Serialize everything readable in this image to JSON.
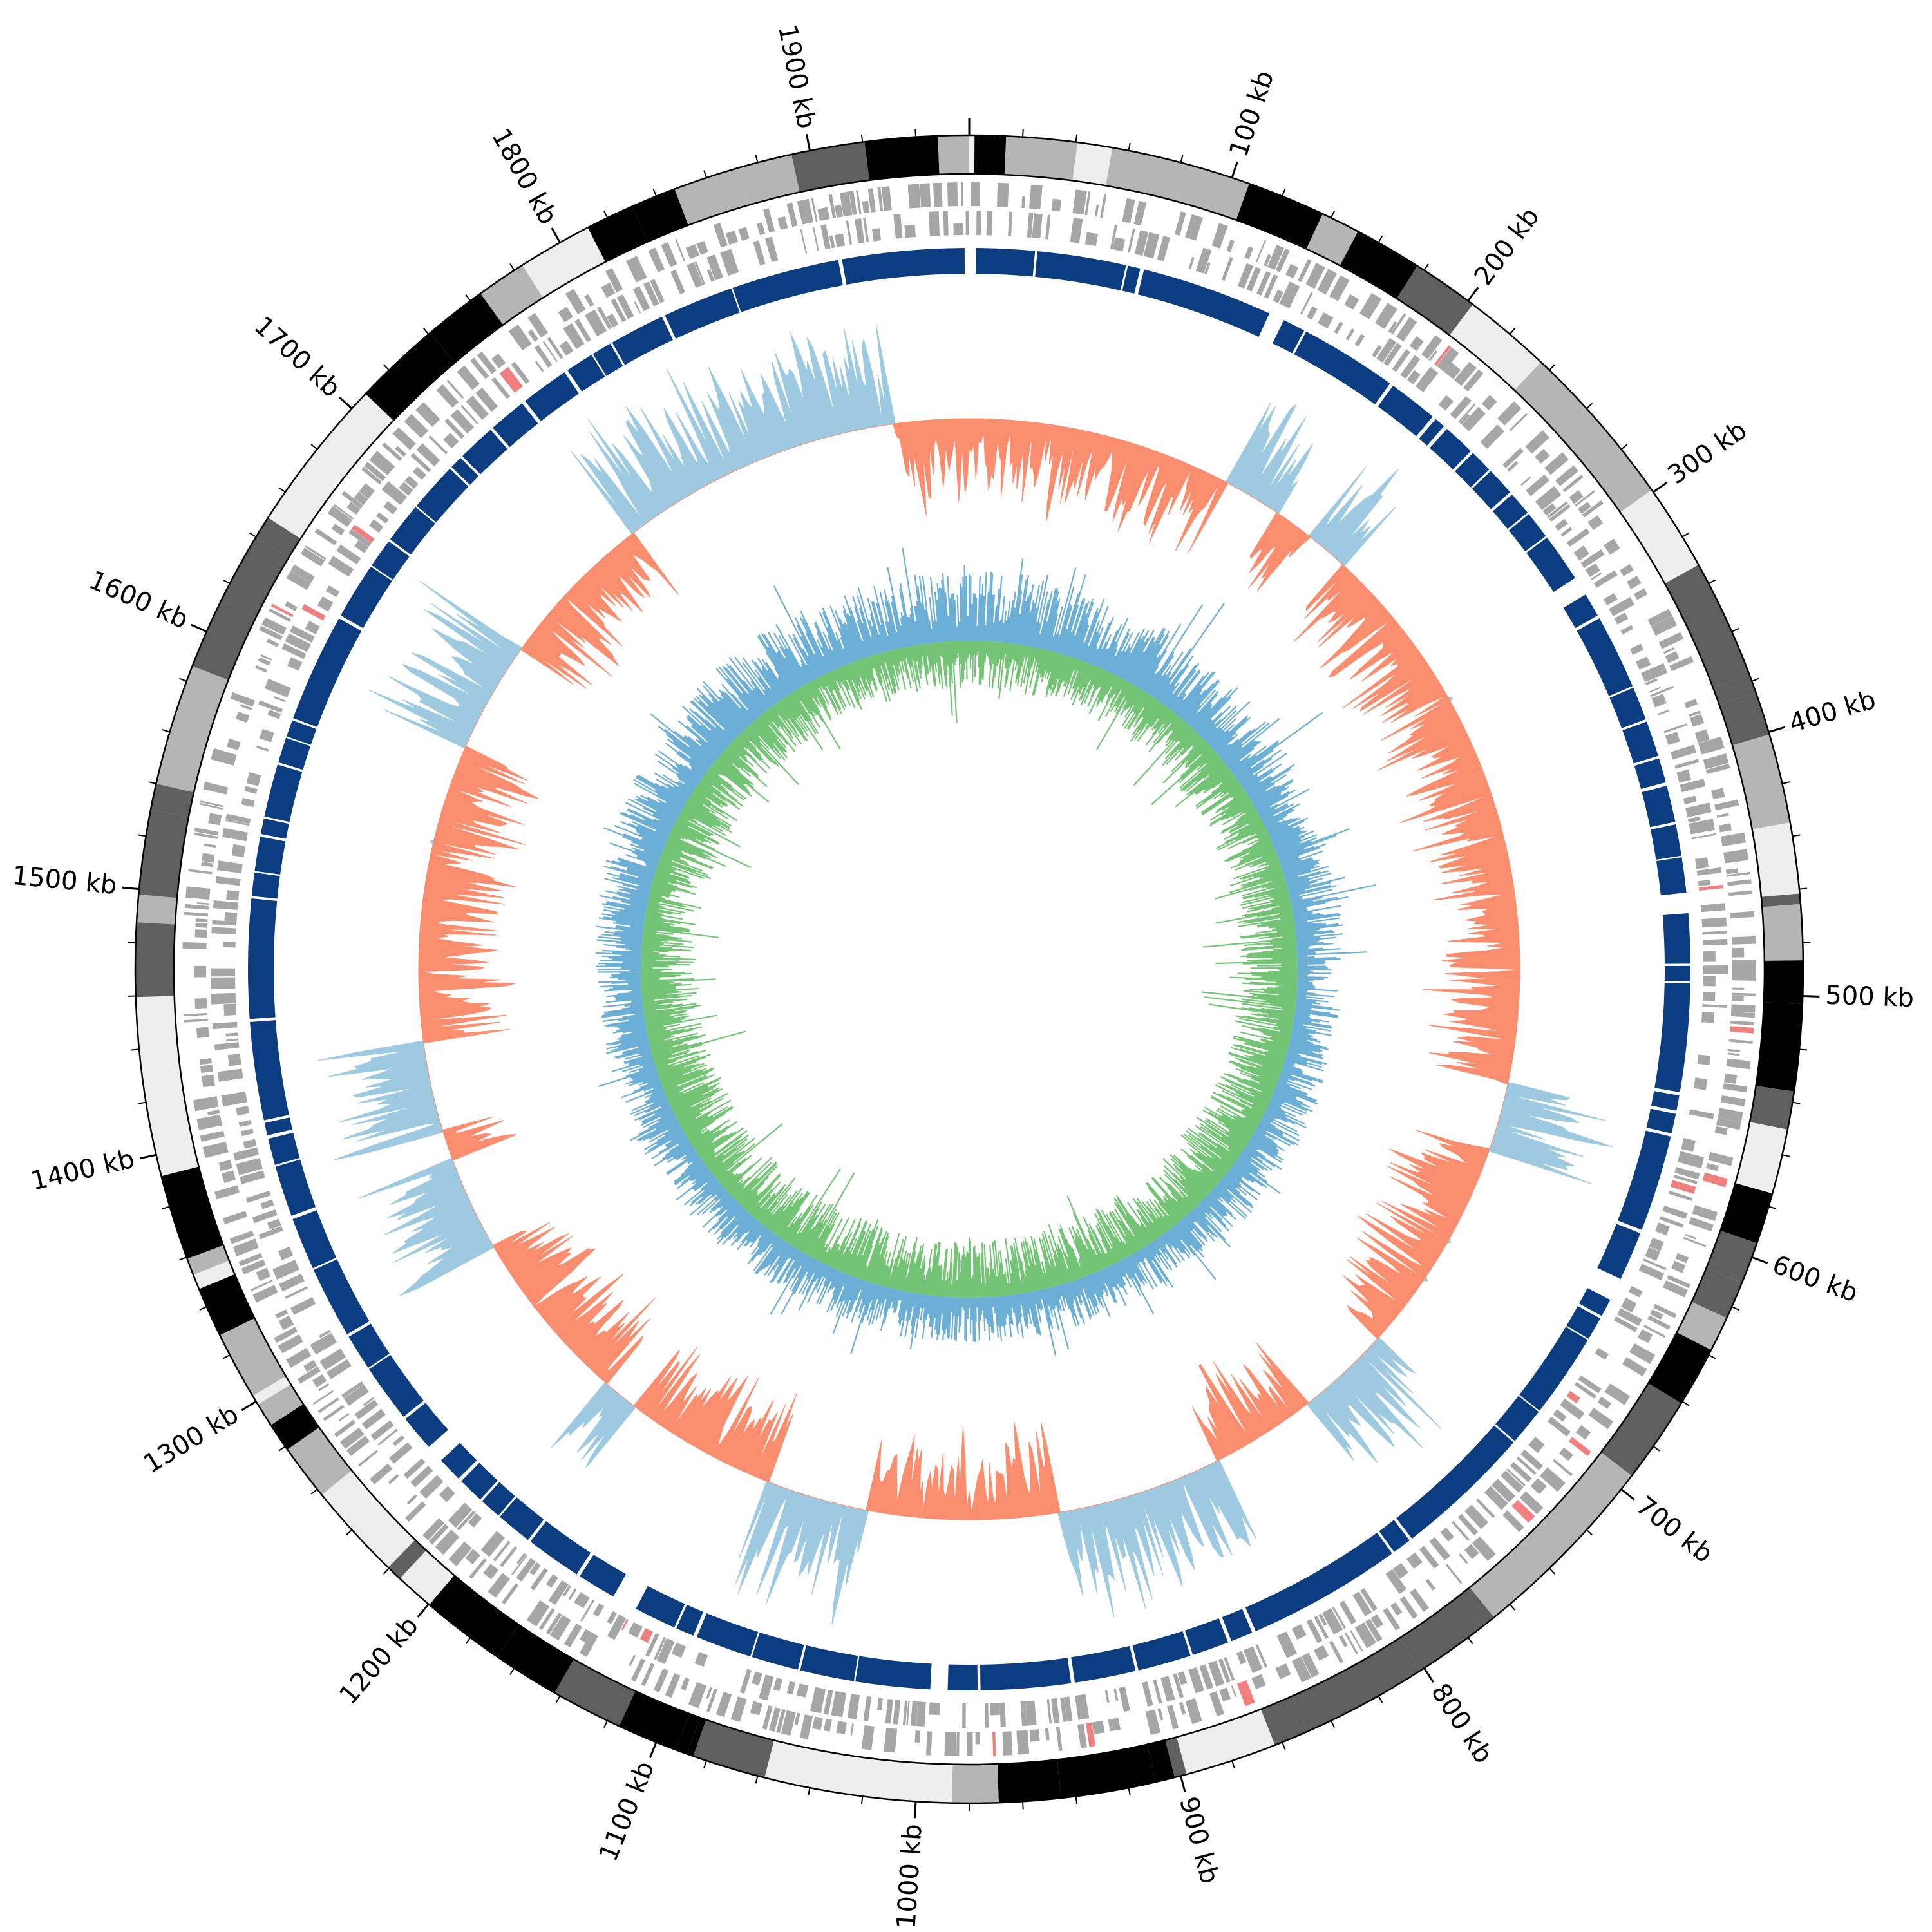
{
  "genome_total_kb": 1960,
  "label_interval_kb": 100,
  "minor_tick_interval_kb": 20,
  "tick_labels": [
    {
      "kb": 100,
      "text": "100 kb"
    },
    {
      "kb": 200,
      "text": "200 kb"
    },
    {
      "kb": 300,
      "text": "300 kb"
    },
    {
      "kb": 400,
      "text": "400 kb"
    },
    {
      "kb": 500,
      "text": "500 kb"
    },
    {
      "kb": 600,
      "text": "600 kb"
    },
    {
      "kb": 700,
      "text": "700 kb"
    },
    {
      "kb": 800,
      "text": "800 kb"
    },
    {
      "kb": 900,
      "text": "900 kb"
    },
    {
      "kb": 1000,
      "text": "1000 kb"
    },
    {
      "kb": 1100,
      "text": "1100 kb"
    },
    {
      "kb": 1200,
      "text": "1200 kb"
    },
    {
      "kb": 1300,
      "text": "1300 kb"
    },
    {
      "kb": 1400,
      "text": "1400 kb"
    },
    {
      "kb": 1500,
      "text": "1500 kb"
    },
    {
      "kb": 1600,
      "text": "1600 kb"
    },
    {
      "kb": 1700,
      "text": "1700 kb"
    },
    {
      "kb": 1800,
      "text": "1800 kb"
    },
    {
      "kb": 1900,
      "text": "1900 kb"
    }
  ],
  "colors": {
    "band_shades": [
      "#000000",
      "#5f5f5f",
      "#b5b5b5",
      "#eeeeee"
    ],
    "gene_gray": "#a6a6a6",
    "gene_red": "#f08080",
    "contig_blue": "#0b3d80",
    "gc_content_positive": "#9ecae1",
    "gc_content_negative": "#fb8d6f",
    "gc_skew_blue": "#6baed6",
    "gc_skew_green": "#74c476"
  },
  "tracks": [
    {
      "name": "ideogram-bands"
    },
    {
      "name": "forward-genes"
    },
    {
      "name": "reverse-genes"
    },
    {
      "name": "contigs"
    },
    {
      "name": "gc-content"
    },
    {
      "name": "gc-skew"
    }
  ]
}
